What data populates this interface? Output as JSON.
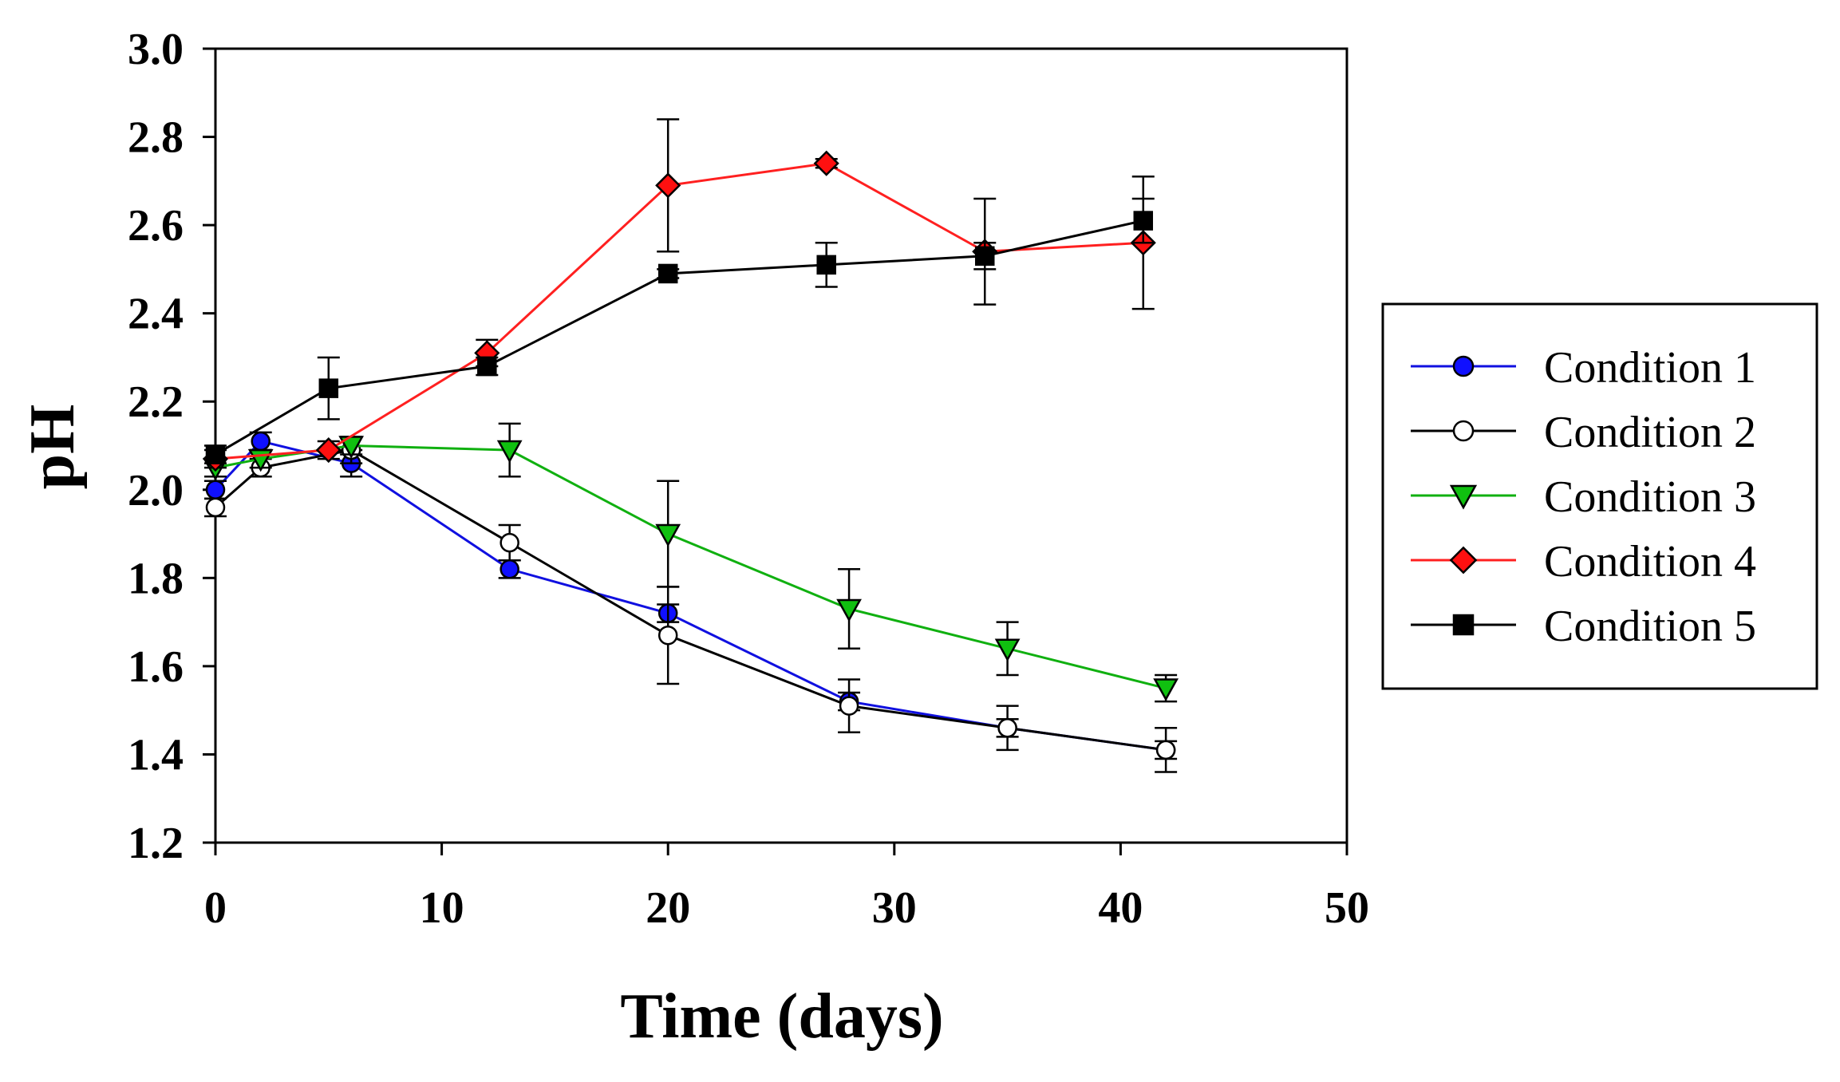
{
  "chart_data": {
    "type": "line",
    "title": "",
    "xlabel": "Time (days)",
    "ylabel": "pH",
    "xlim": [
      0,
      50
    ],
    "ylim": [
      1.2,
      3.0
    ],
    "xticks": [
      0,
      10,
      20,
      30,
      40,
      50
    ],
    "xtick_labels": [
      "0",
      "10",
      "20",
      "30",
      "40",
      "50"
    ],
    "yticks": [
      1.2,
      1.4,
      1.6,
      1.8,
      2.0,
      2.2,
      2.4,
      2.6,
      2.8,
      3.0
    ],
    "ytick_labels": [
      "1.2",
      "1.4",
      "1.6",
      "1.8",
      "2.0",
      "2.2",
      "2.4",
      "2.6",
      "2.8",
      "3.0"
    ],
    "grid": false,
    "legend_position": "right",
    "series": [
      {
        "name": "Condition 1",
        "marker": "circle",
        "fill": "#1010ff",
        "line_color": "#1010e0",
        "x": [
          0,
          2,
          6,
          13,
          20,
          28,
          35,
          42
        ],
        "y": [
          2.0,
          2.11,
          2.06,
          1.82,
          1.72,
          1.52,
          1.46,
          1.41
        ],
        "err": [
          0.02,
          0.02,
          0.03,
          0.02,
          0.02,
          0.02,
          0.02,
          0.02
        ]
      },
      {
        "name": "Condition 2",
        "marker": "circle",
        "fill": "#ffffff",
        "line_color": "#000000",
        "x": [
          0,
          2,
          6,
          13,
          20,
          28,
          35,
          42
        ],
        "y": [
          1.96,
          2.05,
          2.09,
          1.88,
          1.67,
          1.51,
          1.46,
          1.41
        ],
        "err": [
          0.02,
          0.02,
          0.03,
          0.04,
          0.11,
          0.06,
          0.05,
          0.05
        ]
      },
      {
        "name": "Condition 3",
        "marker": "triangle-down",
        "fill": "#10c010",
        "line_color": "#10b010",
        "x": [
          0,
          2,
          6,
          13,
          20,
          28,
          35,
          42
        ],
        "y": [
          2.05,
          2.07,
          2.1,
          2.09,
          1.9,
          1.73,
          1.64,
          1.55
        ],
        "err": [
          0.02,
          0.02,
          0.02,
          0.06,
          0.12,
          0.09,
          0.06,
          0.03
        ]
      },
      {
        "name": "Condition 4",
        "marker": "diamond",
        "fill": "#ff1010",
        "line_color": "#ff2020",
        "x": [
          0,
          5,
          12,
          20,
          27,
          34,
          41
        ],
        "y": [
          2.07,
          2.09,
          2.31,
          2.69,
          2.74,
          2.54,
          2.56
        ],
        "err": [
          0.02,
          0.02,
          0.03,
          0.15,
          0.01,
          0.12,
          0.15
        ]
      },
      {
        "name": "Condition 5",
        "marker": "square",
        "fill": "#000000",
        "line_color": "#000000",
        "x": [
          0,
          5,
          12,
          20,
          27,
          34,
          41
        ],
        "y": [
          2.08,
          2.23,
          2.28,
          2.49,
          2.51,
          2.53,
          2.61
        ],
        "err": [
          0.02,
          0.07,
          0.02,
          0.01,
          0.05,
          0.03,
          0.05
        ]
      }
    ]
  }
}
